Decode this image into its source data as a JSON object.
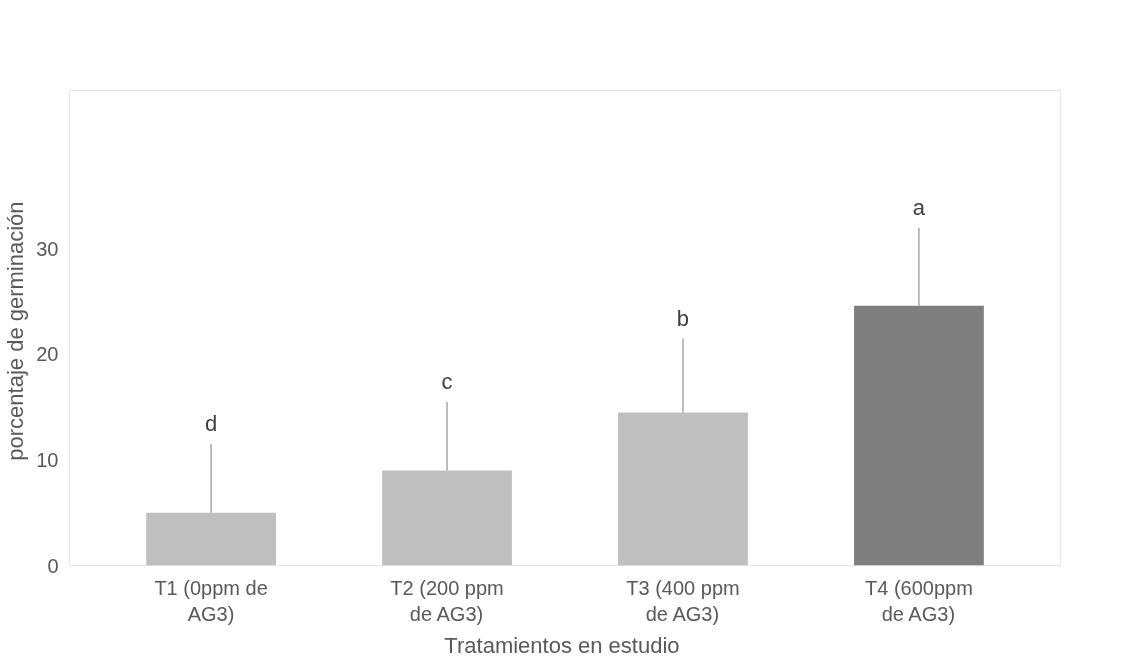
{
  "chart_data": {
    "type": "bar",
    "xlabel": "Tratamientos  en estudio",
    "ylabel": "porcentaje  de germinación",
    "categories": [
      "T1 (0ppm de AG3)",
      "T2 (200 ppm de AG3)",
      "T3 (400 ppm de AG3)",
      "T4 (600ppm de AG3)"
    ],
    "values": [
      5,
      9,
      14.5,
      24.6
    ],
    "colors": [
      "#bfbfbf",
      "#bfbfbf",
      "#bfbfbf",
      "#7f7f7f"
    ],
    "errors": [
      [
        5,
        11.5
      ],
      [
        9,
        15.5
      ],
      [
        14.5,
        21.5
      ],
      [
        24.6,
        32
      ]
    ],
    "ylim": [
      0,
      45
    ],
    "yticks": [
      0,
      10,
      20,
      30
    ],
    "grid": false,
    "annotations": [
      "d",
      "c",
      "b",
      "a"
    ]
  }
}
